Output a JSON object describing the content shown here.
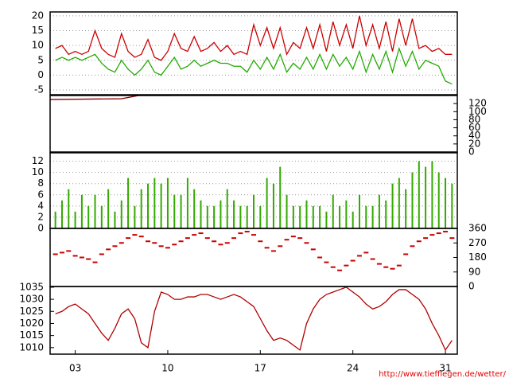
{
  "chart_data": [
    {
      "type": "line",
      "xlim": [
        1.1,
        31.9
      ],
      "ylim": [
        -6.6,
        21.3
      ],
      "yticks": [
        -5,
        0,
        5,
        10,
        15,
        20
      ],
      "grid": true,
      "y_axis": "left",
      "x": [
        1.5,
        2,
        2.5,
        3,
        3.5,
        4,
        4.5,
        5,
        5.5,
        6,
        6.5,
        7,
        7.5,
        8,
        8.5,
        9,
        9.5,
        10,
        10.5,
        11,
        11.5,
        12,
        12.5,
        13,
        13.5,
        14,
        14.5,
        15,
        15.5,
        16,
        16.5,
        17,
        17.5,
        18,
        18.5,
        19,
        19.5,
        20,
        20.5,
        21,
        21.5,
        22,
        22.5,
        23,
        23.5,
        24,
        24.5,
        25,
        25.5,
        26,
        26.5,
        27,
        27.5,
        28,
        28.5,
        29,
        29.5,
        30,
        30.5,
        31,
        31.5
      ],
      "series": [
        {
          "color": "#cc0000",
          "values": [
            9,
            10,
            7,
            8,
            7,
            8,
            15,
            9,
            7,
            6,
            14,
            8,
            6,
            7,
            12,
            6,
            5,
            8,
            14,
            9,
            8,
            13,
            8,
            9,
            11,
            8,
            10,
            7,
            8,
            7,
            17,
            10,
            16,
            9,
            16,
            7,
            11,
            9,
            16,
            9,
            17,
            8,
            18,
            10,
            17,
            9,
            20,
            10,
            17,
            9,
            18,
            8,
            19,
            10,
            19,
            9,
            10,
            8,
            9,
            7,
            7
          ]
        },
        {
          "color": "#22aa00",
          "values": [
            5,
            6,
            5,
            6,
            5,
            6,
            7,
            4,
            2,
            1,
            5,
            2,
            0,
            2,
            5,
            1,
            0,
            3,
            6,
            2,
            3,
            5,
            3,
            4,
            5,
            4,
            4,
            3,
            3,
            1,
            5,
            2,
            6,
            2,
            7,
            1,
            4,
            2,
            6,
            2,
            7,
            2,
            7,
            3,
            6,
            2,
            8,
            1,
            7,
            2,
            8,
            1,
            9,
            3,
            8,
            2,
            5,
            4,
            3,
            -2,
            -3
          ]
        }
      ]
    },
    {
      "type": "line",
      "xlim": [
        1.1,
        31.9
      ],
      "ylim": [
        0,
        140
      ],
      "yticks": [
        0,
        20,
        40,
        60,
        80,
        100,
        120
      ],
      "grid": false,
      "y_axis": "right",
      "x": [
        1.1,
        6.5,
        7.8,
        10.2
      ],
      "series": [
        {
          "color": "#8b0000",
          "values": [
            130,
            132,
            140,
            140
          ]
        }
      ]
    },
    {
      "type": "bar",
      "xlim": [
        1.1,
        31.9
      ],
      "ylim": [
        0,
        13.5
      ],
      "yticks": [
        0,
        2,
        4,
        6,
        8,
        10,
        12
      ],
      "grid": true,
      "y_axis": "left",
      "x": [
        1.5,
        2,
        2.5,
        3,
        3.5,
        4,
        4.5,
        5,
        5.5,
        6,
        6.5,
        7,
        7.5,
        8,
        8.5,
        9,
        9.5,
        10,
        10.5,
        11,
        11.5,
        12,
        12.5,
        13,
        13.5,
        14,
        14.5,
        15,
        15.5,
        16,
        16.5,
        17,
        17.5,
        18,
        18.5,
        19,
        19.5,
        20,
        20.5,
        21,
        21.5,
        22,
        22.5,
        23,
        23.5,
        24,
        24.5,
        25,
        25.5,
        26,
        26.5,
        27,
        27.5,
        28,
        28.5,
        29,
        29.5,
        30,
        30.5,
        31,
        31.5
      ],
      "series": [
        {
          "color": "#33aa00",
          "values": [
            3,
            5,
            7,
            3,
            6,
            4,
            6,
            4,
            7,
            3,
            5,
            9,
            4,
            7,
            8,
            9,
            8,
            9,
            6,
            6,
            9,
            7,
            5,
            4,
            4,
            5,
            7,
            5,
            4,
            4,
            6,
            4,
            9,
            8,
            11,
            6,
            4,
            4,
            5,
            4,
            4,
            3,
            6,
            4,
            5,
            3,
            6,
            4,
            4,
            6,
            5,
            8,
            9,
            7,
            10,
            12,
            11,
            12,
            10,
            9,
            8
          ]
        }
      ]
    },
    {
      "type": "scatter",
      "xlim": [
        1.1,
        31.9
      ],
      "ylim": [
        0,
        360
      ],
      "yticks": [
        0,
        90,
        180,
        270,
        360
      ],
      "grid": false,
      "y_axis": "right",
      "x": [
        1.5,
        2,
        2.5,
        3,
        3.5,
        4,
        4.5,
        5,
        5.5,
        6,
        6.5,
        7,
        7.5,
        8,
        8.5,
        9,
        9.5,
        10,
        10.5,
        11,
        11.5,
        12,
        12.5,
        13,
        13.5,
        14,
        14.5,
        15,
        15.5,
        16,
        16.5,
        17,
        17.5,
        18,
        18.5,
        19,
        19.5,
        20,
        20.5,
        21,
        21.5,
        22,
        22.5,
        23,
        23.5,
        24,
        24.5,
        25,
        25.5,
        26,
        26.5,
        27,
        27.5,
        28,
        28.5,
        29,
        29.5,
        30,
        30.5,
        31,
        31.5
      ],
      "series": [
        {
          "color": "#cc0000",
          "values": [
            200,
            210,
            220,
            190,
            180,
            170,
            150,
            200,
            230,
            250,
            270,
            300,
            320,
            310,
            280,
            270,
            250,
            240,
            260,
            280,
            300,
            320,
            330,
            300,
            280,
            260,
            270,
            300,
            330,
            340,
            320,
            280,
            240,
            220,
            250,
            290,
            310,
            300,
            270,
            230,
            180,
            150,
            120,
            100,
            130,
            160,
            190,
            210,
            170,
            140,
            120,
            110,
            130,
            200,
            250,
            280,
            300,
            320,
            330,
            340,
            300
          ]
        }
      ]
    },
    {
      "type": "line",
      "xlim": [
        1.1,
        31.9
      ],
      "ylim": [
        1007.3,
        1035.3
      ],
      "yticks": [
        1010,
        1015,
        1020,
        1025,
        1030,
        1035
      ],
      "grid": false,
      "y_axis": "left",
      "xticks": [
        {
          "value": 3,
          "label": "03"
        },
        10,
        17,
        24,
        31
      ],
      "x": [
        1.5,
        2,
        2.5,
        3,
        3.5,
        4,
        4.5,
        5,
        5.5,
        6,
        6.5,
        7,
        7.5,
        8,
        8.5,
        9,
        9.5,
        10,
        10.5,
        11,
        11.5,
        12,
        12.5,
        13,
        13.5,
        14,
        14.5,
        15,
        15.5,
        16,
        16.5,
        17,
        17.5,
        18,
        18.5,
        19,
        19.5,
        20,
        20.5,
        21,
        21.5,
        22,
        22.5,
        23,
        23.5,
        24,
        24.5,
        25,
        25.5,
        26,
        26.5,
        27,
        27.5,
        28,
        28.5,
        29,
        29.5,
        30,
        30.5,
        31,
        31.5
      ],
      "series": [
        {
          "color": "#b00000",
          "values": [
            1024,
            1025,
            1027,
            1028,
            1026,
            1024,
            1020,
            1016,
            1013,
            1018,
            1024,
            1026,
            1022,
            1012,
            1010,
            1025,
            1033,
            1032,
            1030,
            1030,
            1031,
            1031,
            1032,
            1032,
            1031,
            1030,
            1031,
            1032,
            1031,
            1029,
            1027,
            1022,
            1017,
            1013,
            1014,
            1013,
            1011,
            1009,
            1020,
            1026,
            1030,
            1032,
            1033,
            1034,
            1035,
            1033,
            1031,
            1028,
            1026,
            1027,
            1029,
            1032,
            1034,
            1034,
            1032,
            1030,
            1026,
            1020,
            1015,
            1009,
            1013
          ]
        }
      ]
    }
  ],
  "footer": "http://www.tiefflegen.de/wetter/"
}
